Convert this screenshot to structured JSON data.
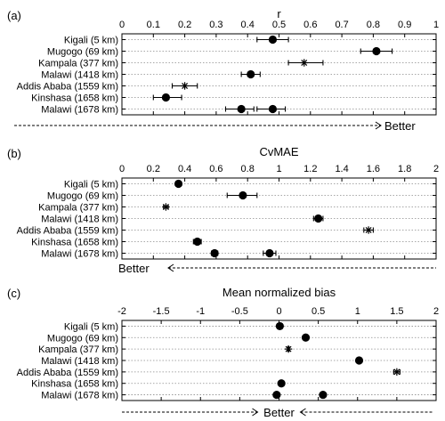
{
  "colors": {
    "marker": "#000000",
    "grid": "#8c8c8c",
    "frame": "#000000"
  },
  "chart_data": [
    {
      "type": "scatter",
      "panel_label": "(a)",
      "title": "r",
      "xlim": [
        0,
        1
      ],
      "ticks": [
        0,
        0.1,
        0.2,
        0.3,
        0.4,
        0.5,
        0.6,
        0.7,
        0.8,
        0.9,
        1
      ],
      "tick_labels": [
        "0",
        "0.1",
        "0.2",
        "0.3",
        "0.4",
        "0.5",
        "0.6",
        "0.7",
        "0.8",
        "0.9",
        "1"
      ],
      "categories": [
        "Kigali (5 km)",
        "Mugogo (69 km)",
        "Kampala (377 km)",
        "Malawi (1418 km)",
        "Addis Ababa (1559 km)",
        "Kinshasa (1658 km)",
        "Malawi (1678 km)"
      ],
      "points": [
        {
          "row": 0,
          "x": 0.48,
          "lo": 0.43,
          "hi": 0.53,
          "marker": "dot"
        },
        {
          "row": 1,
          "x": 0.81,
          "lo": 0.76,
          "hi": 0.86,
          "marker": "dot"
        },
        {
          "row": 2,
          "x": 0.58,
          "lo": 0.53,
          "hi": 0.64,
          "marker": "star"
        },
        {
          "row": 3,
          "x": 0.41,
          "lo": 0.38,
          "hi": 0.44,
          "marker": "dot"
        },
        {
          "row": 4,
          "x": 0.2,
          "lo": 0.16,
          "hi": 0.24,
          "marker": "star"
        },
        {
          "row": 5,
          "x": 0.14,
          "lo": 0.1,
          "hi": 0.19,
          "marker": "dot"
        },
        {
          "row": 6,
          "x": 0.38,
          "lo": 0.33,
          "hi": 0.42,
          "marker": "dot"
        },
        {
          "row": 6,
          "x": 0.48,
          "lo": 0.43,
          "hi": 0.52,
          "marker": "dot"
        }
      ],
      "grid": true,
      "direction": "right",
      "direction_label": "Better"
    },
    {
      "type": "scatter",
      "panel_label": "(b)",
      "title": "CvMAE",
      "xlim": [
        0,
        2
      ],
      "ticks": [
        0,
        0.2,
        0.4,
        0.6,
        0.8,
        1,
        1.2,
        1.4,
        1.6,
        1.8,
        2
      ],
      "tick_labels": [
        "0",
        "0.2",
        "0.4",
        "0.6",
        "0.8",
        "1",
        "1.2",
        "1.4",
        "1.6",
        "1.8",
        "2"
      ],
      "categories": [
        "Kigali (5 km)",
        "Mugogo (69 km)",
        "Kampala (377 km)",
        "Malawi (1418 km)",
        "Addis Ababa (1559 km)",
        "Kinshasa (1658 km)",
        "Malawi (1678 km)"
      ],
      "points": [
        {
          "row": 0,
          "x": 0.36,
          "lo": 0.345,
          "hi": 0.375,
          "marker": "dot"
        },
        {
          "row": 1,
          "x": 0.77,
          "lo": 0.67,
          "hi": 0.86,
          "marker": "dot"
        },
        {
          "row": 2,
          "x": 0.28,
          "lo": 0.265,
          "hi": 0.295,
          "marker": "star"
        },
        {
          "row": 3,
          "x": 1.25,
          "lo": 1.22,
          "hi": 1.28,
          "marker": "dot"
        },
        {
          "row": 4,
          "x": 1.57,
          "lo": 1.54,
          "hi": 1.6,
          "marker": "star"
        },
        {
          "row": 5,
          "x": 0.48,
          "lo": 0.455,
          "hi": 0.505,
          "marker": "dot"
        },
        {
          "row": 6,
          "x": 0.59,
          "lo": 0.57,
          "hi": 0.61,
          "marker": "dot"
        },
        {
          "row": 6,
          "x": 0.94,
          "lo": 0.9,
          "hi": 0.98,
          "marker": "dot"
        }
      ],
      "grid": true,
      "direction": "left",
      "direction_label": "Better"
    },
    {
      "type": "scatter",
      "panel_label": "(c)",
      "title": "Mean normalized bias",
      "xlim": [
        -2,
        2
      ],
      "ticks": [
        -2,
        -1.5,
        -1,
        -0.5,
        0,
        0.5,
        1,
        1.5,
        2
      ],
      "tick_labels": [
        "-2",
        "-1.5",
        "-1",
        "-0.5",
        "0",
        "0.5",
        "1",
        "1.5",
        "2"
      ],
      "categories": [
        "Kigali (5 km)",
        "Mugogo (69 km)",
        "Kampala (377 km)",
        "Malawi (1418 km)",
        "Addis Ababa (1559 km)",
        "Kinshasa (1658 km)",
        "Malawi (1678 km)"
      ],
      "points": [
        {
          "row": 0,
          "x": 0.01,
          "lo": -0.01,
          "hi": 0.03,
          "marker": "dot"
        },
        {
          "row": 1,
          "x": 0.34,
          "lo": 0.31,
          "hi": 0.37,
          "marker": "dot"
        },
        {
          "row": 2,
          "x": 0.12,
          "lo": 0.11,
          "hi": 0.13,
          "marker": "star"
        },
        {
          "row": 3,
          "x": 1.02,
          "lo": 0.99,
          "hi": 1.05,
          "marker": "dot"
        },
        {
          "row": 4,
          "x": 1.5,
          "lo": 1.46,
          "hi": 1.54,
          "marker": "star"
        },
        {
          "row": 5,
          "x": 0.03,
          "lo": 0.01,
          "hi": 0.05,
          "marker": "dot"
        },
        {
          "row": 6,
          "x": -0.03,
          "lo": -0.05,
          "hi": -0.01,
          "marker": "dot"
        },
        {
          "row": 6,
          "x": 0.56,
          "lo": 0.54,
          "hi": 0.58,
          "marker": "dot"
        }
      ],
      "grid": true,
      "direction": "center",
      "direction_label": "Better"
    }
  ]
}
